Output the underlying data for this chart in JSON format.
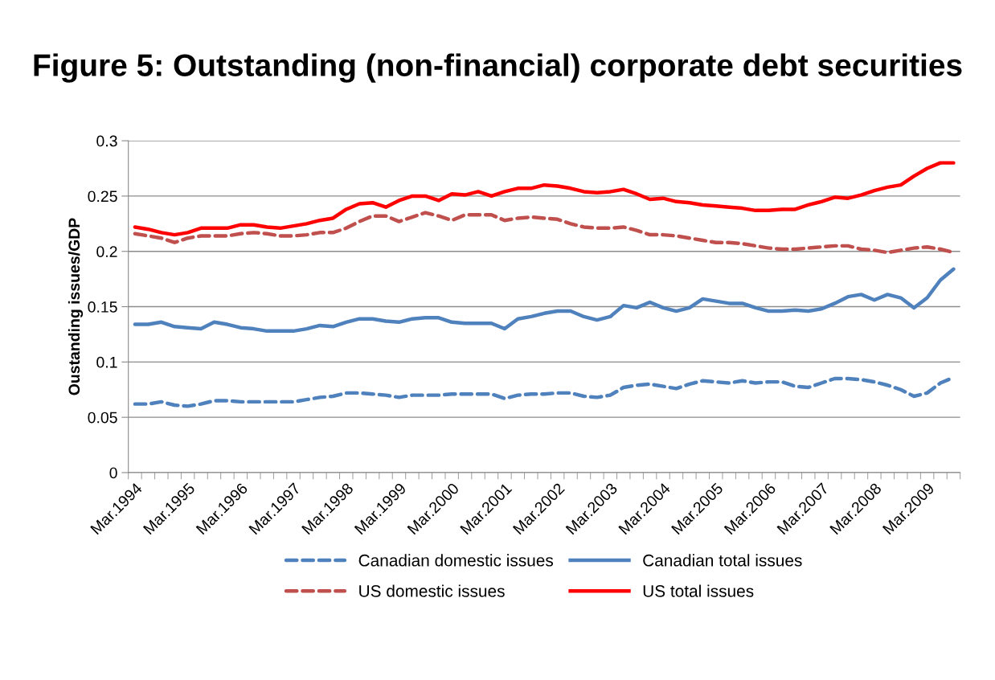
{
  "chart_data": {
    "type": "line",
    "title": "Figure 5: Outstanding (non-financial) corporate debt securities",
    "ylabel": "Oustanding issues/GDP",
    "categories": [
      "Mar.1994",
      null,
      null,
      null,
      "Mar.1995",
      null,
      null,
      null,
      "Mar.1996",
      null,
      null,
      null,
      "Mar.1997",
      null,
      null,
      null,
      "Mar.1998",
      null,
      null,
      null,
      "Mar.1999",
      null,
      null,
      null,
      "Mar.2000",
      null,
      null,
      null,
      "Mar.2001",
      null,
      null,
      null,
      "Mar.2002",
      null,
      null,
      null,
      "Mar.2003",
      null,
      null,
      null,
      "Mar.2004",
      null,
      null,
      null,
      "Mar.2005",
      null,
      null,
      null,
      "Mar.2006",
      null,
      null,
      null,
      "Mar.2007",
      null,
      null,
      null,
      "Mar.2008",
      null,
      null,
      null,
      "Mar.2009",
      null,
      null
    ],
    "ylim": [
      0,
      0.3
    ],
    "yticks": [
      {
        "value": 0,
        "label": "0"
      },
      0.05,
      0.1,
      0.15,
      0.2,
      0.25,
      0.3
    ],
    "grid": "y",
    "legend": "bottom",
    "marker": "none",
    "series": [
      {
        "name": "Canadian domestic issues",
        "color": "#4f81bd",
        "line_style": "dashed",
        "values": [
          0.062,
          0.062,
          0.064,
          0.061,
          0.06,
          0.062,
          0.065,
          0.065,
          0.064,
          0.064,
          0.064,
          0.064,
          0.064,
          0.066,
          0.068,
          0.069,
          0.072,
          0.072,
          0.071,
          0.07,
          0.068,
          0.07,
          0.07,
          0.07,
          0.071,
          0.071,
          0.071,
          0.071,
          0.067,
          0.07,
          0.071,
          0.071,
          0.072,
          0.072,
          0.069,
          0.068,
          0.07,
          0.077,
          0.079,
          0.08,
          0.078,
          0.076,
          0.08,
          0.083,
          0.082,
          0.081,
          0.083,
          0.081,
          0.082,
          0.082,
          0.078,
          0.077,
          0.081,
          0.085,
          0.085,
          0.084,
          0.082,
          0.079,
          0.075,
          0.069,
          0.072,
          0.081,
          0.086
        ]
      },
      {
        "name": "US domestic issues",
        "color": "#c0504d",
        "line_style": "dashed",
        "values": [
          0.216,
          0.214,
          0.212,
          0.208,
          0.212,
          0.214,
          0.214,
          0.214,
          0.216,
          0.217,
          0.216,
          0.214,
          0.214,
          0.215,
          0.217,
          0.217,
          0.221,
          0.227,
          0.232,
          0.232,
          0.227,
          0.231,
          0.235,
          0.232,
          0.228,
          0.233,
          0.233,
          0.233,
          0.228,
          0.23,
          0.231,
          0.23,
          0.229,
          0.225,
          0.222,
          0.221,
          0.221,
          0.222,
          0.219,
          0.215,
          0.215,
          0.214,
          0.212,
          0.21,
          0.208,
          0.208,
          0.207,
          0.205,
          0.203,
          0.202,
          0.202,
          0.203,
          0.204,
          0.205,
          0.205,
          0.202,
          0.201,
          0.199,
          0.201,
          0.203,
          0.204,
          0.202,
          0.199
        ]
      },
      {
        "name": "Canadian total issues",
        "color": "#4f81bd",
        "line_style": "solid",
        "values": [
          0.134,
          0.134,
          0.136,
          0.132,
          0.131,
          0.13,
          0.136,
          0.134,
          0.131,
          0.13,
          0.128,
          0.128,
          0.128,
          0.13,
          0.133,
          0.132,
          0.136,
          0.139,
          0.139,
          0.137,
          0.136,
          0.139,
          0.14,
          0.14,
          0.136,
          0.135,
          0.135,
          0.135,
          0.13,
          0.139,
          0.141,
          0.144,
          0.146,
          0.146,
          0.141,
          0.138,
          0.141,
          0.151,
          0.149,
          0.154,
          0.149,
          0.146,
          0.149,
          0.157,
          0.155,
          0.153,
          0.153,
          0.149,
          0.146,
          0.146,
          0.147,
          0.146,
          0.148,
          0.153,
          0.159,
          0.161,
          0.156,
          0.161,
          0.158,
          0.149,
          0.158,
          0.174,
          0.184
        ]
      },
      {
        "name": "US total issues",
        "color": "#ff0000",
        "line_style": "solid",
        "values": [
          0.222,
          0.22,
          0.217,
          0.215,
          0.217,
          0.221,
          0.221,
          0.221,
          0.224,
          0.224,
          0.222,
          0.221,
          0.223,
          0.225,
          0.228,
          0.23,
          0.238,
          0.243,
          0.244,
          0.24,
          0.246,
          0.25,
          0.25,
          0.246,
          0.252,
          0.251,
          0.254,
          0.25,
          0.254,
          0.257,
          0.257,
          0.26,
          0.259,
          0.257,
          0.254,
          0.253,
          0.254,
          0.256,
          0.252,
          0.247,
          0.248,
          0.245,
          0.244,
          0.242,
          0.241,
          0.24,
          0.239,
          0.237,
          0.237,
          0.238,
          0.238,
          0.242,
          0.245,
          0.249,
          0.248,
          0.251,
          0.255,
          0.258,
          0.26,
          0.268,
          0.275,
          0.28,
          0.28
        ]
      }
    ]
  }
}
